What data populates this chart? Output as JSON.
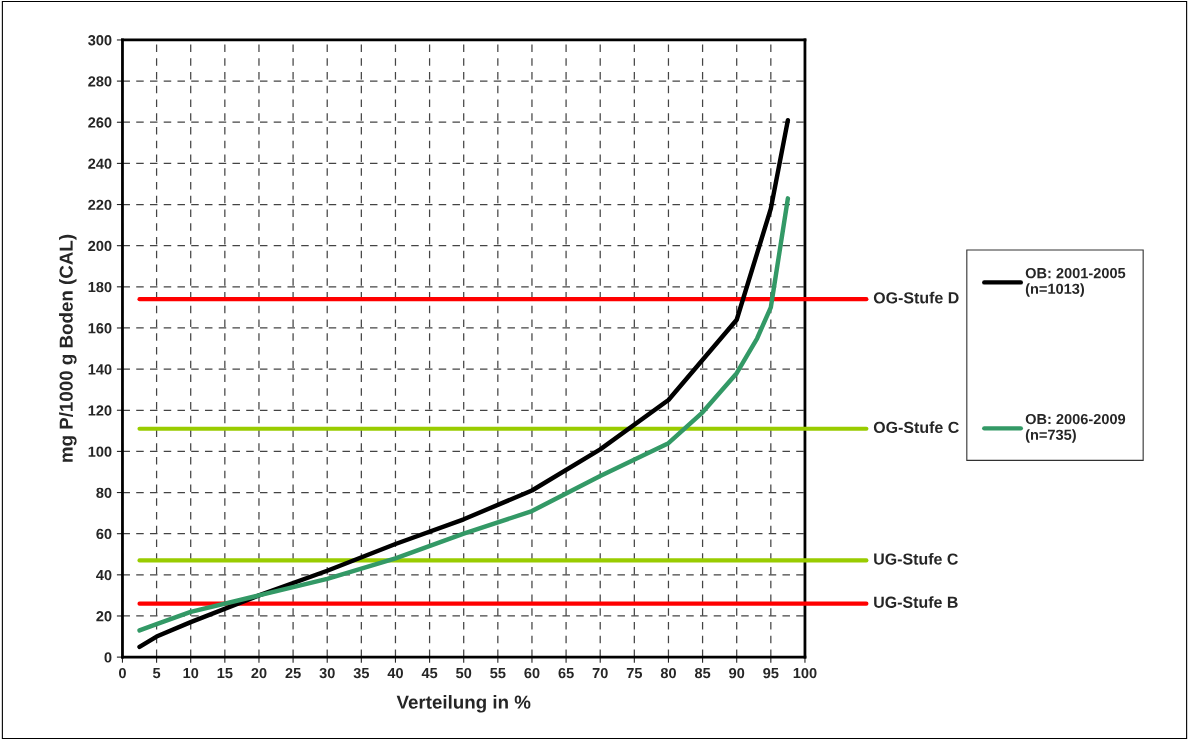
{
  "chart_data": {
    "type": "line",
    "xlabel": "Verteilung in %",
    "ylabel": "mg P/1000 g Boden (CAL)",
    "series": [
      {
        "name": "OB: 2001-2005\n(n=1013)",
        "color": "#000000",
        "x": [
          2.5,
          5,
          10,
          20,
          30,
          40,
          50,
          60,
          70,
          80,
          90,
          95,
          97.5
        ],
        "values": [
          5,
          10,
          17,
          30,
          42,
          55,
          67,
          81,
          101,
          125,
          164,
          218,
          261
        ]
      },
      {
        "name": "OB: 2006-2009\n(n=735)",
        "color": "#339966",
        "x": [
          2.5,
          5,
          10,
          20,
          30,
          40,
          50,
          60,
          70,
          80,
          85,
          90,
          93,
          95,
          97.5
        ],
        "values": [
          13,
          16,
          22,
          30,
          38,
          48,
          60,
          71,
          88,
          104,
          119,
          138,
          155,
          170,
          223
        ]
      }
    ],
    "ref_lines": [
      {
        "axis": "y",
        "value": 174,
        "label": "OG-Stufe D",
        "color": "#ff0000"
      },
      {
        "axis": "y",
        "value": 111,
        "label": "OG-Stufe C",
        "color": "#99cc00"
      },
      {
        "axis": "y",
        "value": 47,
        "label": "UG-Stufe C",
        "color": "#99cc00"
      },
      {
        "axis": "y",
        "value": 26,
        "label": "UG-Stufe B",
        "color": "#ff0000"
      }
    ],
    "xlim": [
      0,
      100
    ],
    "xticks": [
      0,
      5,
      10,
      15,
      20,
      25,
      30,
      35,
      40,
      45,
      50,
      55,
      60,
      65,
      70,
      75,
      80,
      85,
      90,
      95,
      100
    ],
    "ylim": [
      0,
      300
    ],
    "yticks": [
      0,
      20,
      40,
      60,
      80,
      100,
      120,
      140,
      160,
      180,
      200,
      220,
      240,
      260,
      280,
      300
    ],
    "grid": true,
    "legend": "right",
    "marker": "none",
    "line_style": "solid"
  }
}
